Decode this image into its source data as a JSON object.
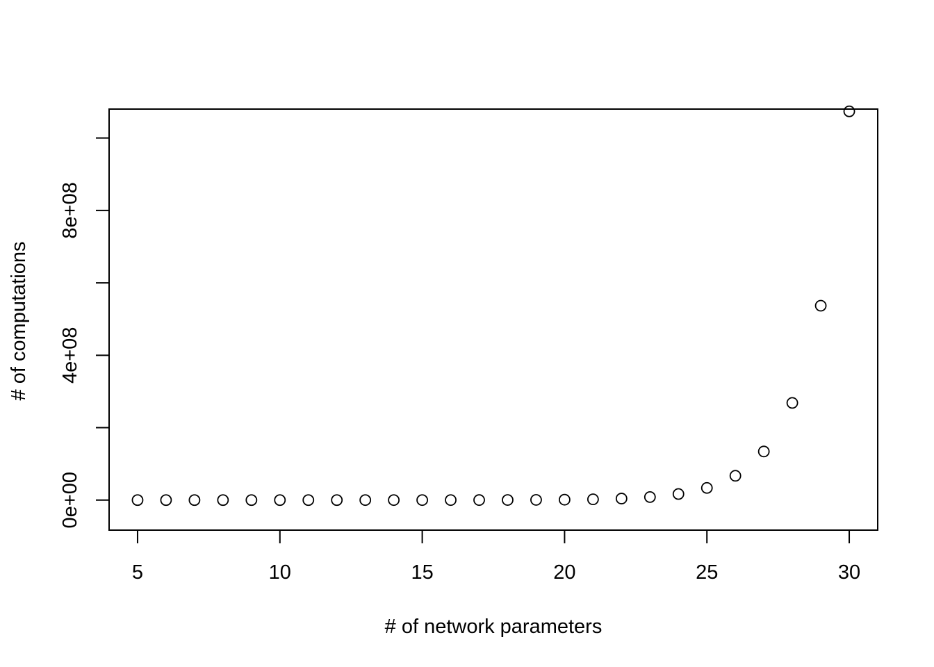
{
  "chart_data": {
    "type": "scatter",
    "title": "",
    "xlabel": "# of network parameters",
    "ylabel": "# of computations",
    "xlim": [
      4,
      31
    ],
    "ylim": [
      -83000000,
      1080000000
    ],
    "x_ticks": [
      5,
      10,
      15,
      20,
      25,
      30
    ],
    "x_tick_labels": [
      "5",
      "10",
      "15",
      "20",
      "25",
      "30"
    ],
    "y_ticks": [
      0,
      200000000,
      400000000,
      600000000,
      800000000,
      1000000000
    ],
    "y_tick_labels": [
      "0e+00",
      "",
      "4e+08",
      "",
      "8e+08",
      ""
    ],
    "grid": false,
    "marker": "open-circle",
    "x": [
      5,
      6,
      7,
      8,
      9,
      10,
      11,
      12,
      13,
      14,
      15,
      16,
      17,
      18,
      19,
      20,
      21,
      22,
      23,
      24,
      25,
      26,
      27,
      28,
      29,
      30
    ],
    "y": [
      32,
      64,
      128,
      256,
      512,
      1024,
      2048,
      4096,
      8192,
      16384,
      32768,
      65536,
      131072,
      262144,
      524288,
      1048576,
      2097152,
      4194304,
      8388608,
      16777216,
      33554432,
      67108864,
      134217728,
      268435456,
      536870912,
      1073741824
    ]
  }
}
